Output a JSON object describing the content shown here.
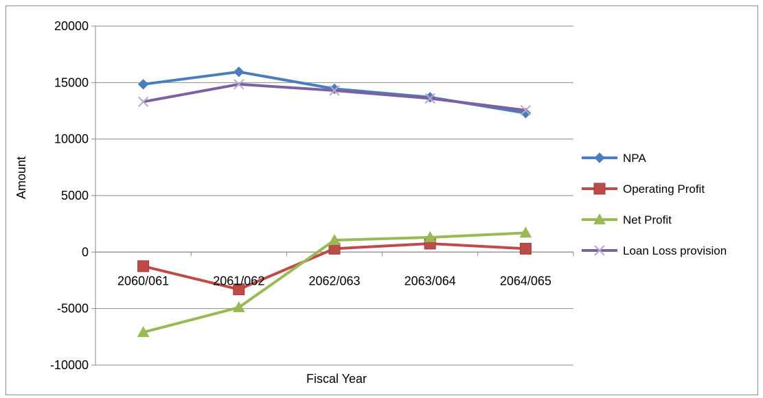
{
  "chart_data": {
    "type": "line",
    "xlabel": "Fiscal Year",
    "ylabel": "Amount",
    "ylim": [
      -10000,
      20000
    ],
    "yticks": [
      20000,
      15000,
      10000,
      5000,
      0,
      -5000,
      -10000
    ],
    "grid": true,
    "legend_position": "right",
    "categories": [
      "2060/061",
      "2061/062",
      "2062/063",
      "2063/064",
      "2064/065"
    ],
    "series": [
      {
        "name": "NPA",
        "marker": "diamond",
        "color": "#4a7ebb",
        "values": [
          14850,
          15950,
          14450,
          13700,
          12300
        ]
      },
      {
        "name": "Operating Profit",
        "marker": "square",
        "color": "#be4b48",
        "values": [
          -1250,
          -3300,
          300,
          750,
          300
        ]
      },
      {
        "name": "Net Profit",
        "marker": "triangle",
        "color": "#98b954",
        "values": [
          -7100,
          -4900,
          1050,
          1300,
          1700
        ]
      },
      {
        "name": "Loan Loss provision",
        "marker": "x",
        "color": "#7d60a0",
        "values": [
          13300,
          14850,
          14300,
          13600,
          12550
        ]
      }
    ]
  }
}
